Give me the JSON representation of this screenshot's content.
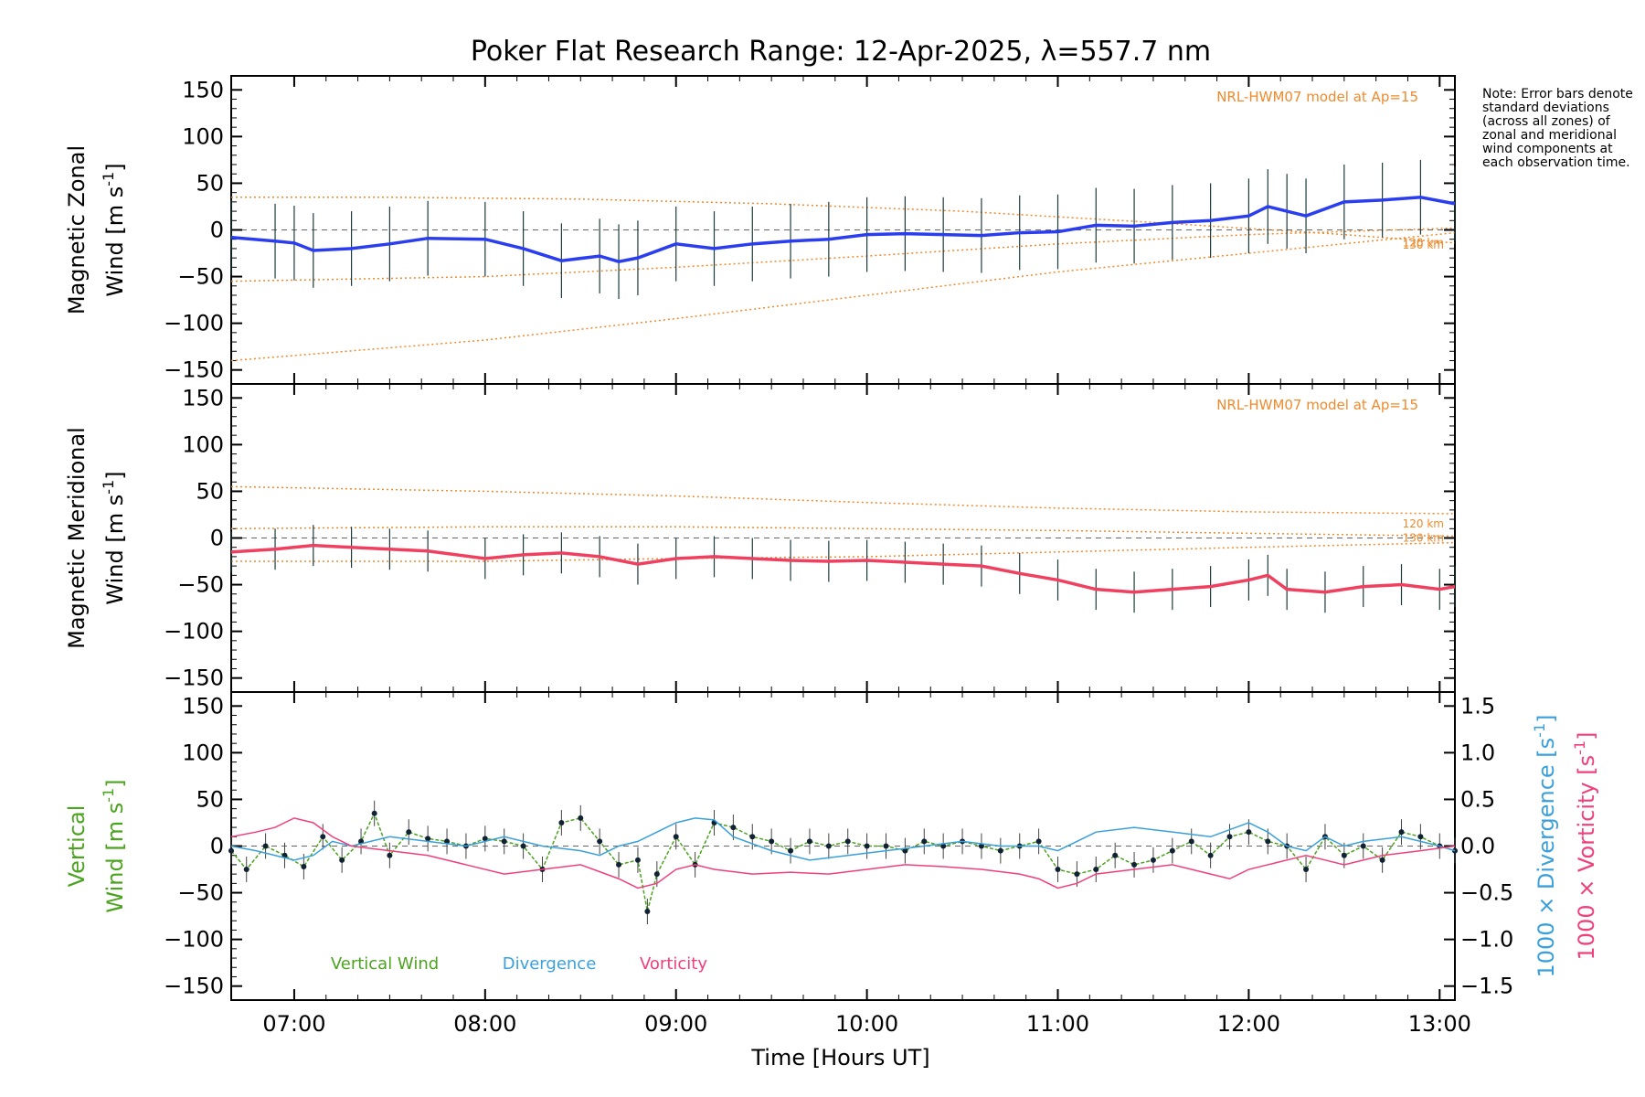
{
  "chart_data": {
    "type": "line",
    "title": "Poker Flat Research Range: 12-Apr-2025, λ=557.7 nm",
    "note": "Note: Error bars denote standard deviations (across all zones) of zonal and meridional wind components at each observation time.",
    "xlabel": "Time [Hours UT]",
    "xlim": [
      6.67,
      13.08
    ],
    "xticks": [
      {
        "value": 7,
        "label": "07:00"
      },
      {
        "value": 8,
        "label": "08:00"
      },
      {
        "value": 9,
        "label": "09:00"
      },
      {
        "value": 10,
        "label": "10:00"
      },
      {
        "value": 11,
        "label": "11:00"
      },
      {
        "value": 12,
        "label": "12:00"
      },
      {
        "value": 13,
        "label": "13:00"
      }
    ],
    "panels": [
      {
        "id": "zonal",
        "ylabel_top": "Magnetic Zonal",
        "ylabel_bottom": "Wind",
        "yunit": "[m s",
        "yunit_exp": "-1",
        "yunit_close": "]",
        "ylim": [
          -165,
          165
        ],
        "yticks": [
          150,
          100,
          50,
          0,
          -50,
          -100,
          -150
        ],
        "model_label": "NRL-HWM07 model at Ap=15",
        "model_lines": [
          {
            "label": "120 km",
            "x": [
              6.67,
              8.0,
              9.0,
              10.0,
              11.0,
              12.0,
              13.08
            ],
            "y": [
              -140,
              -118,
              -95,
              -70,
              -45,
              -25,
              -3
            ]
          },
          {
            "label": "130 km",
            "x": [
              6.67,
              7.5,
              8.5,
              9.5,
              10.5,
              11.5,
              12.5,
              13.08
            ],
            "y": [
              35,
              35,
              33,
              28,
              20,
              8,
              -5,
              -14
            ]
          },
          {
            "label": "",
            "x": [
              6.67,
              8.0,
              9.0,
              10.0,
              11.0,
              12.0,
              13.08
            ],
            "y": [
              -55,
              -50,
              -40,
              -28,
              -15,
              -5,
              2
            ]
          }
        ],
        "series": [
          {
            "name": "",
            "color": "#2a3ef0",
            "x": [
              6.67,
              6.9,
              7.0,
              7.1,
              7.3,
              7.5,
              7.7,
              8.0,
              8.2,
              8.4,
              8.6,
              8.7,
              8.8,
              9.0,
              9.2,
              9.4,
              9.6,
              9.8,
              10.0,
              10.2,
              10.4,
              10.6,
              10.8,
              11.0,
              11.2,
              11.4,
              11.6,
              11.8,
              12.0,
              12.1,
              12.2,
              12.3,
              12.5,
              12.7,
              12.9,
              13.08
            ],
            "y": [
              -8,
              -12,
              -14,
              -22,
              -20,
              -15,
              -9,
              -10,
              -20,
              -33,
              -28,
              -34,
              -30,
              -15,
              -20,
              -15,
              -12,
              -10,
              -5,
              -4,
              -5,
              -6,
              -3,
              -2,
              5,
              4,
              8,
              10,
              15,
              25,
              20,
              15,
              30,
              32,
              35,
              28
            ]
          }
        ]
      },
      {
        "id": "meridional",
        "ylabel_top": "Magnetic Meridional",
        "ylabel_bottom": "Wind",
        "yunit": "[m s",
        "yunit_exp": "-1",
        "yunit_close": "]",
        "ylim": [
          -165,
          165
        ],
        "yticks": [
          150,
          100,
          50,
          0,
          -50,
          -100,
          -150
        ],
        "model_label": "NRL-HWM07 model at Ap=15",
        "model_lines": [
          {
            "label": "120 km",
            "x": [
              6.67,
              8.0,
              9.0,
              10.0,
              11.0,
              12.0,
              13.08
            ],
            "y": [
              55,
              50,
              45,
              38,
              32,
              28,
              26
            ]
          },
          {
            "label": "130 km",
            "x": [
              6.67,
              8.0,
              9.0,
              10.0,
              11.0,
              12.0,
              13.08
            ],
            "y": [
              10,
              12,
              12,
              10,
              8,
              5,
              2
            ]
          },
          {
            "label": "",
            "x": [
              6.67,
              8.0,
              9.0,
              10.0,
              11.0,
              12.0,
              13.08
            ],
            "y": [
              -25,
              -25,
              -22,
              -20,
              -15,
              -10,
              -5
            ]
          }
        ],
        "series": [
          {
            "name": "",
            "color": "#f04060",
            "x": [
              6.67,
              6.9,
              7.1,
              7.3,
              7.5,
              7.7,
              8.0,
              8.2,
              8.4,
              8.6,
              8.8,
              9.0,
              9.2,
              9.4,
              9.6,
              9.8,
              10.0,
              10.2,
              10.4,
              10.6,
              10.8,
              11.0,
              11.2,
              11.4,
              11.6,
              11.8,
              12.0,
              12.1,
              12.2,
              12.4,
              12.6,
              12.8,
              13.0,
              13.08
            ],
            "y": [
              -15,
              -12,
              -8,
              -10,
              -12,
              -14,
              -22,
              -18,
              -16,
              -20,
              -28,
              -22,
              -20,
              -22,
              -24,
              -25,
              -24,
              -26,
              -28,
              -30,
              -38,
              -45,
              -55,
              -58,
              -55,
              -52,
              -45,
              -40,
              -55,
              -58,
              -52,
              -50,
              -55,
              -52
            ]
          }
        ]
      },
      {
        "id": "vertical",
        "ylabel_top": "Vertical",
        "ylabel_bottom": "Wind",
        "yunit": "[m s",
        "yunit_exp": "-1",
        "yunit_close": "]",
        "ylim": [
          -165,
          165
        ],
        "yticks": [
          150,
          100,
          50,
          0,
          -50,
          -100,
          -150
        ],
        "right_axis": {
          "label_div": "1000 × Divergence [s",
          "label_vort": "1000 × Vorticity [s",
          "exp": "-1",
          "close": "]",
          "ylim": [
            -1.65,
            1.65
          ],
          "yticks": [
            1.5,
            1.0,
            0.5,
            0.0,
            -0.5,
            -1.0,
            -1.5
          ],
          "yticklabels": [
            "1.5",
            "1.0",
            "0.5",
            "0.0",
            "−0.5",
            "−1.0",
            "−1.5"
          ]
        },
        "legend": [
          {
            "name": "Vertical Wind",
            "color": "#4ca31f"
          },
          {
            "name": "Divergence",
            "color": "#3aa0dc"
          },
          {
            "name": "Vorticity",
            "color": "#f0407a"
          }
        ],
        "series": [
          {
            "name": "Vertical Wind",
            "color": "#4ca31f",
            "axis": "left",
            "x": [
              6.67,
              6.75,
              6.85,
              6.95,
              7.05,
              7.15,
              7.25,
              7.35,
              7.42,
              7.5,
              7.6,
              7.7,
              7.8,
              7.9,
              8.0,
              8.1,
              8.2,
              8.3,
              8.4,
              8.5,
              8.6,
              8.7,
              8.8,
              8.85,
              8.9,
              9.0,
              9.1,
              9.2,
              9.3,
              9.4,
              9.5,
              9.6,
              9.7,
              9.8,
              9.9,
              10.0,
              10.1,
              10.2,
              10.3,
              10.4,
              10.5,
              10.6,
              10.7,
              10.8,
              10.9,
              11.0,
              11.1,
              11.2,
              11.3,
              11.4,
              11.5,
              11.6,
              11.7,
              11.8,
              11.9,
              12.0,
              12.1,
              12.2,
              12.3,
              12.4,
              12.5,
              12.6,
              12.7,
              12.8,
              12.9,
              13.0,
              13.08
            ],
            "y": [
              -5,
              -25,
              0,
              -10,
              -22,
              10,
              -15,
              5,
              35,
              -10,
              15,
              8,
              5,
              0,
              8,
              5,
              0,
              -25,
              25,
              30,
              5,
              -20,
              -15,
              -70,
              -30,
              10,
              -20,
              25,
              20,
              10,
              5,
              -5,
              5,
              0,
              5,
              0,
              0,
              -5,
              5,
              0,
              5,
              0,
              -5,
              0,
              5,
              -25,
              -30,
              -25,
              -10,
              -20,
              -15,
              -5,
              5,
              -10,
              10,
              15,
              5,
              0,
              -25,
              10,
              -10,
              0,
              -15,
              15,
              10,
              0,
              -5
            ]
          },
          {
            "name": "Divergence",
            "color": "#3aa0dc",
            "axis": "right",
            "x": [
              6.67,
              6.8,
              6.9,
              7.0,
              7.1,
              7.2,
              7.3,
              7.5,
              7.7,
              7.9,
              8.1,
              8.3,
              8.5,
              8.6,
              8.7,
              8.8,
              8.9,
              9.0,
              9.1,
              9.2,
              9.3,
              9.5,
              9.7,
              9.9,
              10.1,
              10.3,
              10.5,
              10.7,
              10.9,
              11.0,
              11.1,
              11.2,
              11.4,
              11.6,
              11.8,
              12.0,
              12.1,
              12.2,
              12.3,
              12.4,
              12.5,
              12.6,
              12.8,
              13.0,
              13.08
            ],
            "y": [
              0.0,
              -0.05,
              -0.1,
              -0.15,
              -0.1,
              0.05,
              0.0,
              0.1,
              0.05,
              0.0,
              0.1,
              0.0,
              -0.05,
              -0.1,
              0.0,
              0.05,
              0.15,
              0.25,
              0.3,
              0.28,
              0.1,
              -0.05,
              -0.15,
              -0.1,
              -0.05,
              0.0,
              0.05,
              0.0,
              0.0,
              -0.05,
              0.05,
              0.15,
              0.2,
              0.15,
              0.1,
              0.25,
              0.15,
              0.0,
              -0.05,
              0.1,
              0.0,
              0.05,
              0.1,
              0.0,
              -0.05
            ]
          },
          {
            "name": "Vorticity",
            "color": "#f0407a",
            "axis": "right",
            "x": [
              6.67,
              6.8,
              6.9,
              7.0,
              7.1,
              7.2,
              7.3,
              7.5,
              7.7,
              7.9,
              8.1,
              8.3,
              8.5,
              8.7,
              8.8,
              8.9,
              9.0,
              9.1,
              9.2,
              9.4,
              9.6,
              9.8,
              10.0,
              10.2,
              10.4,
              10.6,
              10.8,
              10.9,
              11.0,
              11.1,
              11.2,
              11.4,
              11.6,
              11.8,
              11.9,
              12.0,
              12.1,
              12.2,
              12.3,
              12.4,
              12.5,
              12.7,
              12.9,
              13.08
            ],
            "y": [
              0.1,
              0.15,
              0.2,
              0.3,
              0.25,
              0.1,
              0.0,
              -0.05,
              -0.1,
              -0.2,
              -0.3,
              -0.25,
              -0.2,
              -0.35,
              -0.45,
              -0.4,
              -0.25,
              -0.2,
              -0.25,
              -0.3,
              -0.28,
              -0.3,
              -0.25,
              -0.2,
              -0.22,
              -0.25,
              -0.3,
              -0.35,
              -0.45,
              -0.4,
              -0.3,
              -0.25,
              -0.2,
              -0.3,
              -0.35,
              -0.25,
              -0.2,
              -0.15,
              -0.1,
              -0.15,
              -0.2,
              -0.1,
              -0.05,
              0.0
            ]
          }
        ]
      }
    ]
  }
}
